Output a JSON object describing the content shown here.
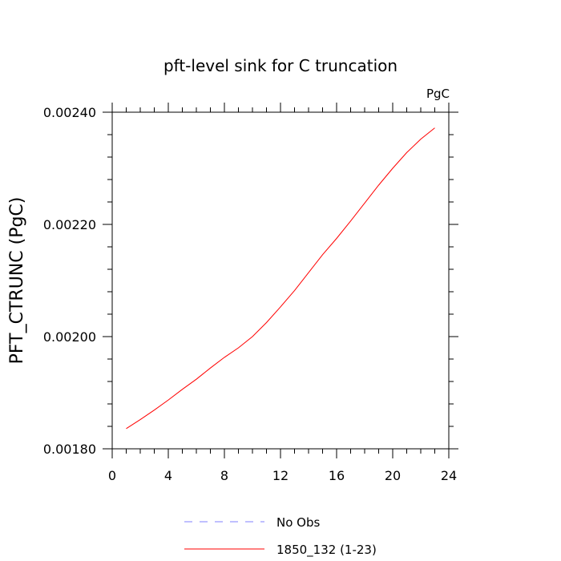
{
  "chart_data": {
    "type": "line",
    "title": "pft-level sink for C truncation",
    "units_label": "PgC",
    "ylabel": "PFT_CTRUNC  (PgC)",
    "xlabel": "",
    "xlim": [
      0,
      24
    ],
    "ylim": [
      0.0018,
      0.0024
    ],
    "x_ticks": [
      0,
      4,
      8,
      12,
      16,
      20,
      24
    ],
    "x_tick_labels": [
      "0",
      "4",
      "8",
      "12",
      "16",
      "20",
      "24"
    ],
    "y_ticks": [
      0.0018,
      0.002,
      0.0022,
      0.0024
    ],
    "y_tick_labels": [
      "0.00180",
      "0.00200",
      "0.00220",
      "0.00240"
    ],
    "grid": false,
    "legend_position": "bottom",
    "legend": [
      {
        "label": "No Obs",
        "color": "#8080ff",
        "style": "dashed"
      },
      {
        "label": "1850_132 (1-23)",
        "color": "#ff0000",
        "style": "solid"
      }
    ],
    "series": [
      {
        "name": "1850_132 (1-23)",
        "color": "#ff0000",
        "x": [
          1,
          2,
          3,
          4,
          5,
          6,
          7,
          8,
          9,
          10,
          11,
          12,
          13,
          14,
          15,
          16,
          17,
          18,
          19,
          20,
          21,
          22,
          23
        ],
        "y": [
          0.001836,
          0.001852,
          0.001869,
          0.001887,
          0.001906,
          0.001924,
          0.001944,
          0.001963,
          0.00198,
          0.002,
          0.002025,
          0.002053,
          0.002082,
          0.002114,
          0.002146,
          0.002175,
          0.002206,
          0.002238,
          0.00227,
          0.0023,
          0.002328,
          0.002352,
          0.002372
        ]
      }
    ]
  }
}
